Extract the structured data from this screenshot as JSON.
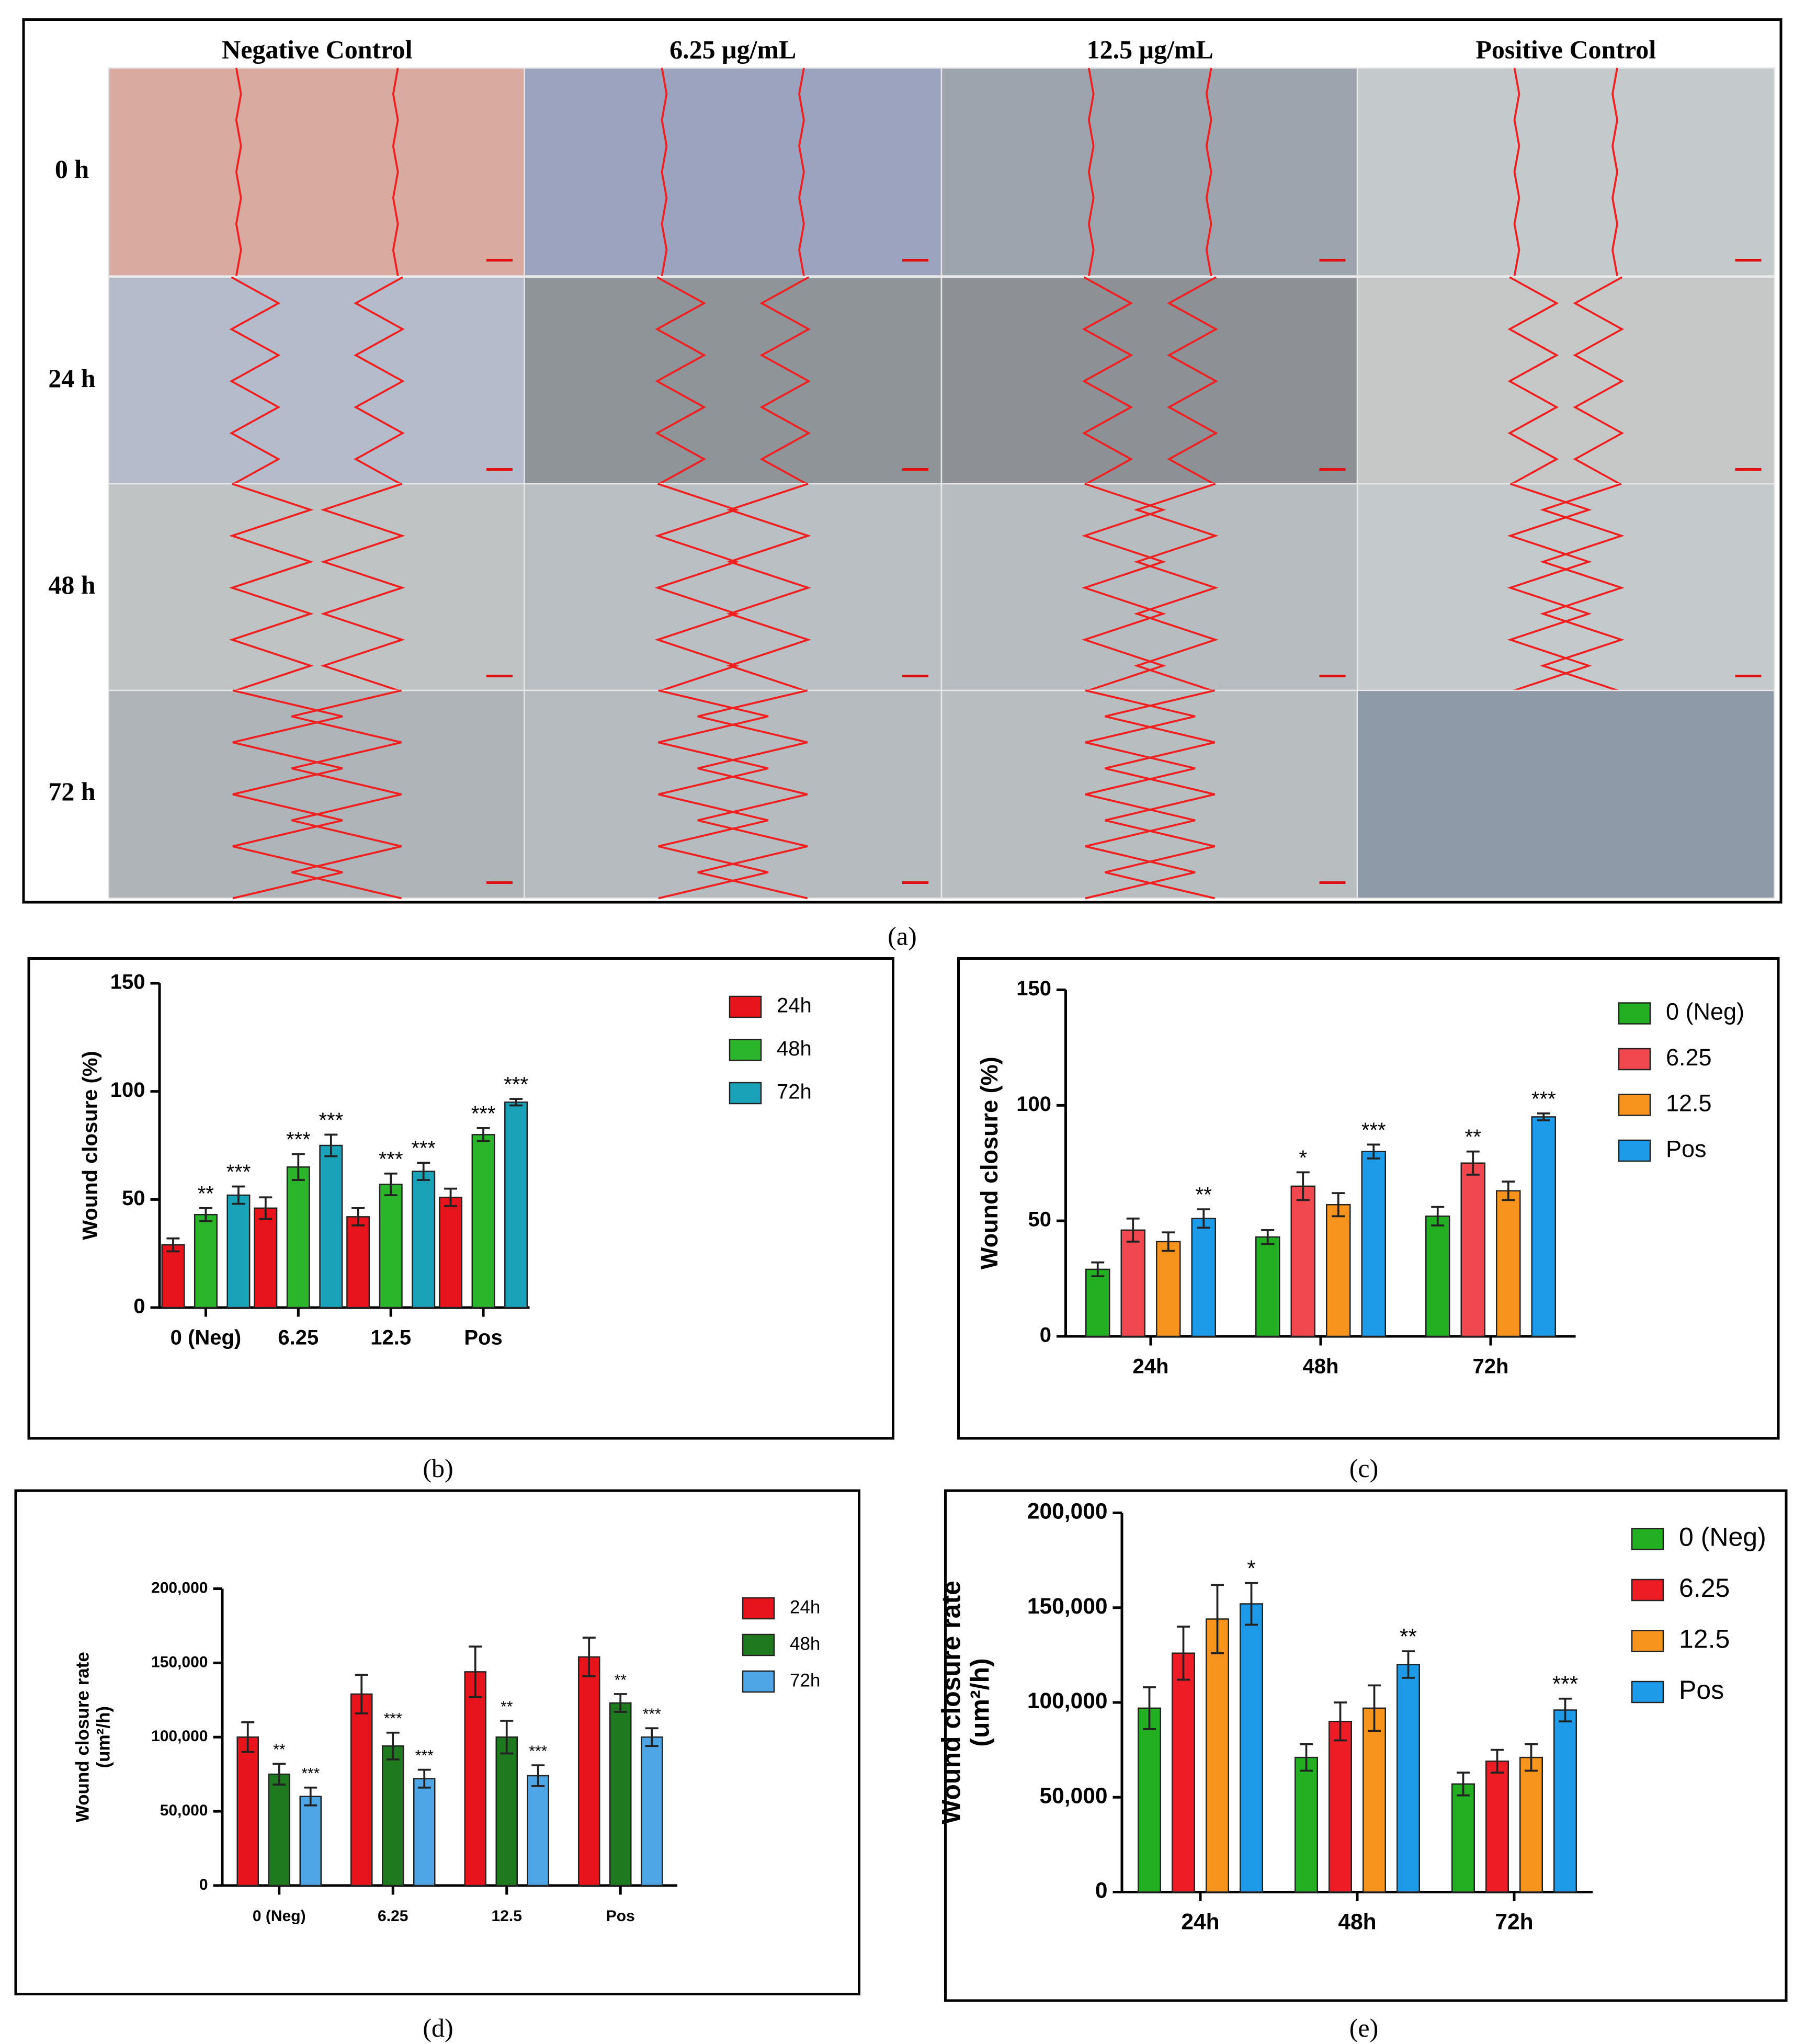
{
  "micrographs": {
    "column_labels": [
      "Negative Control",
      "6.25 μg/mL",
      "12.5 μg/mL",
      "Positive Control"
    ],
    "row_labels": [
      "0 h",
      "24 h",
      "48 h",
      "72 h"
    ],
    "panel_label": "(a)"
  },
  "chart_data": [
    {
      "type": "bar",
      "panel_label": "(b)",
      "ylabel": [
        "Wound closure (%)"
      ],
      "categories": [
        "0 (Neg)",
        "6.25",
        "12.5",
        "Pos"
      ],
      "ylim": [
        0,
        150
      ],
      "yticks": [
        0,
        50,
        100,
        150
      ],
      "series": [
        {
          "name": "24h",
          "color": "#e8141b",
          "values": [
            29,
            46,
            42,
            51
          ],
          "errors": [
            3,
            5,
            4,
            4
          ],
          "annotations": [
            null,
            null,
            null,
            null
          ]
        },
        {
          "name": "48h",
          "color": "#2ab52a",
          "values": [
            43,
            65,
            57,
            80
          ],
          "errors": [
            3,
            6,
            5,
            3
          ],
          "annotations": [
            "**",
            "***",
            "***",
            "***"
          ]
        },
        {
          "name": "72h",
          "color": "#1aa3b8",
          "values": [
            52,
            75,
            63,
            95
          ],
          "errors": [
            4,
            5,
            4,
            1.5
          ],
          "annotations": [
            "***",
            "***",
            "***",
            "***"
          ]
        }
      ]
    },
    {
      "type": "bar",
      "panel_label": "(c)",
      "ylabel": [
        "Wound closure (%)"
      ],
      "categories": [
        "24h",
        "48h",
        "72h"
      ],
      "ylim": [
        0,
        150
      ],
      "yticks": [
        0,
        50,
        100,
        150
      ],
      "series": [
        {
          "name": "0 (Neg)",
          "color": "#22b022",
          "values": [
            29,
            43,
            52
          ],
          "errors": [
            3,
            3,
            4
          ],
          "annotations": [
            null,
            null,
            null
          ]
        },
        {
          "name": "6.25",
          "color": "#f0484e",
          "values": [
            46,
            65,
            75
          ],
          "errors": [
            5,
            6,
            5
          ],
          "annotations": [
            null,
            "*",
            "**"
          ]
        },
        {
          "name": "12.5",
          "color": "#f7941d",
          "values": [
            41,
            57,
            63
          ],
          "errors": [
            4,
            5,
            4
          ],
          "annotations": [
            null,
            null,
            null
          ]
        },
        {
          "name": "Pos",
          "color": "#1e9be8",
          "values": [
            51,
            80,
            95
          ],
          "errors": [
            4,
            3,
            1.5
          ],
          "annotations": [
            "**",
            "***",
            "***"
          ]
        }
      ]
    },
    {
      "type": "bar",
      "panel_label": "(d)",
      "ylabel": [
        "Wound closure rate",
        "(um²/h)"
      ],
      "categories": [
        "0 (Neg)",
        "6.25",
        "12.5",
        "Pos"
      ],
      "ylim": [
        0,
        200000
      ],
      "yticks": [
        0,
        {
          "value": 50000,
          "label": "50,000"
        },
        {
          "value": 100000,
          "label": "100,000"
        },
        {
          "value": 150000,
          "label": "150,000"
        },
        {
          "value": 200000,
          "label": "200,000"
        }
      ],
      "series": [
        {
          "name": "24h",
          "color": "#e8141b",
          "values": [
            100000,
            129000,
            144000,
            154000
          ],
          "errors": [
            10000,
            13000,
            17000,
            13000
          ],
          "annotations": [
            null,
            null,
            null,
            null
          ]
        },
        {
          "name": "48h",
          "color": "#1f7a1f",
          "values": [
            75000,
            94000,
            100000,
            123000
          ],
          "errors": [
            7000,
            9000,
            11000,
            6000
          ],
          "annotations": [
            "**",
            "***",
            "**",
            "**"
          ]
        },
        {
          "name": "72h",
          "color": "#4ea6e6",
          "values": [
            60000,
            72000,
            74000,
            100000
          ],
          "errors": [
            6000,
            6000,
            7000,
            6000
          ],
          "annotations": [
            "***",
            "***",
            "***",
            "***"
          ]
        }
      ]
    },
    {
      "type": "bar",
      "panel_label": "(e)",
      "ylabel": [
        "Wound closure rate",
        "(um²/h)"
      ],
      "categories": [
        "24h",
        "48h",
        "72h"
      ],
      "ylim": [
        0,
        200000
      ],
      "yticks": [
        0,
        {
          "value": 50000,
          "label": "50,000"
        },
        {
          "value": 100000,
          "label": "100,000"
        },
        {
          "value": 150000,
          "label": "150,000"
        },
        {
          "value": 200000,
          "label": "200,000"
        }
      ],
      "series": [
        {
          "name": "0 (Neg)",
          "color": "#22b022",
          "values": [
            97000,
            71000,
            57000
          ],
          "errors": [
            11000,
            7000,
            6000
          ],
          "annotations": [
            null,
            null,
            null
          ]
        },
        {
          "name": "6.25",
          "color": "#ee1c25",
          "values": [
            126000,
            90000,
            69000
          ],
          "errors": [
            14000,
            10000,
            6000
          ],
          "annotations": [
            null,
            null,
            null
          ]
        },
        {
          "name": "12.5",
          "color": "#f7941d",
          "values": [
            144000,
            97000,
            71000
          ],
          "errors": [
            18000,
            12000,
            7000
          ],
          "annotations": [
            null,
            null,
            null
          ]
        },
        {
          "name": "Pos",
          "color": "#1e9be8",
          "values": [
            152000,
            120000,
            96000
          ],
          "errors": [
            11000,
            7000,
            6000
          ],
          "annotations": [
            "*",
            "**",
            "***"
          ]
        }
      ]
    }
  ]
}
